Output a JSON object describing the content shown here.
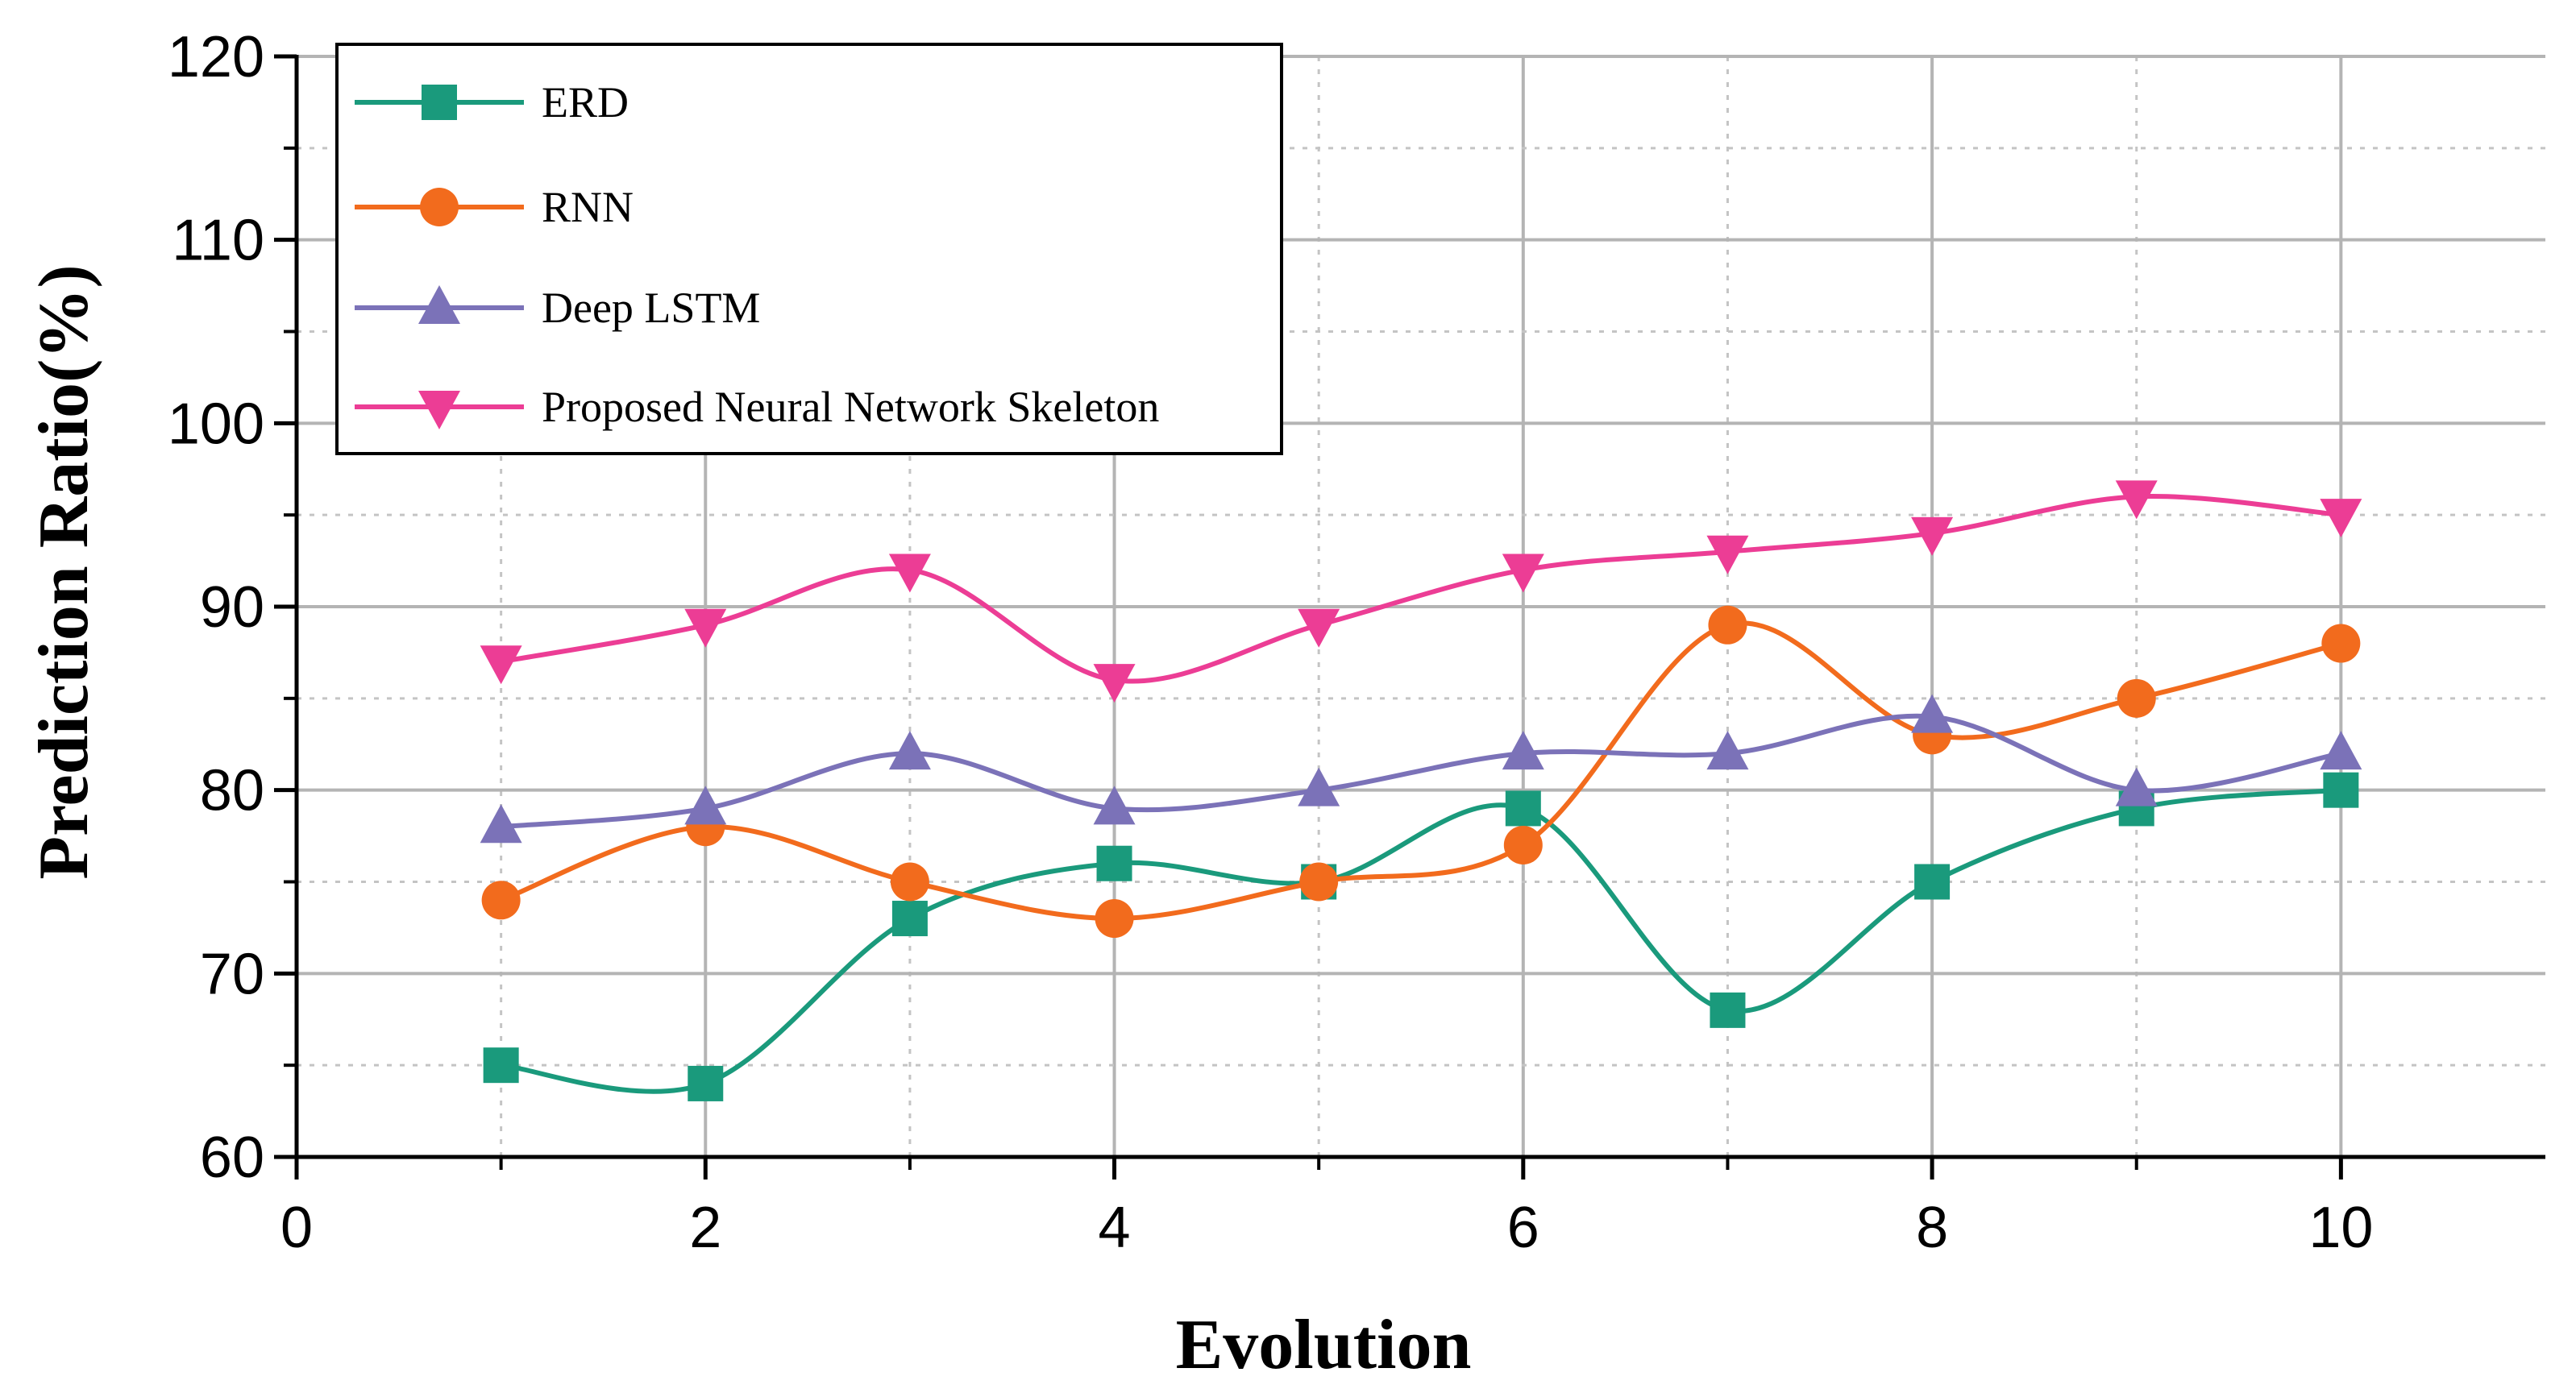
{
  "chart_data": {
    "type": "line",
    "xlabel": "Evolution",
    "ylabel": "Prediction Ratio(%)",
    "xlim": [
      0,
      11
    ],
    "ylim": [
      60,
      120
    ],
    "xticks": [
      0,
      2,
      4,
      6,
      8,
      10
    ],
    "yticks": [
      60,
      70,
      80,
      90,
      100,
      110,
      120
    ],
    "grid": true,
    "legend_position": "top-left",
    "x": [
      1,
      2,
      3,
      4,
      5,
      6,
      7,
      8,
      9,
      10
    ],
    "series": [
      {
        "name": "ERD",
        "marker": "square",
        "color": "#1a9a7c",
        "values": [
          65,
          64,
          73,
          76,
          75,
          79,
          68,
          75,
          79,
          80
        ]
      },
      {
        "name": "RNN",
        "marker": "circle",
        "color": "#f26b1d",
        "values": [
          74,
          78,
          75,
          73,
          75,
          77,
          89,
          83,
          85,
          88
        ]
      },
      {
        "name": "Deep LSTM",
        "marker": "triangle-up",
        "color": "#7b72b8",
        "values": [
          78,
          79,
          82,
          79,
          80,
          82,
          82,
          84,
          80,
          82
        ]
      },
      {
        "name": "Proposed Neural Network Skeleton",
        "marker": "triangle-down",
        "color": "#ec3d95",
        "values": [
          87,
          89,
          92,
          86,
          89,
          92,
          93,
          94,
          96,
          95
        ]
      }
    ]
  }
}
